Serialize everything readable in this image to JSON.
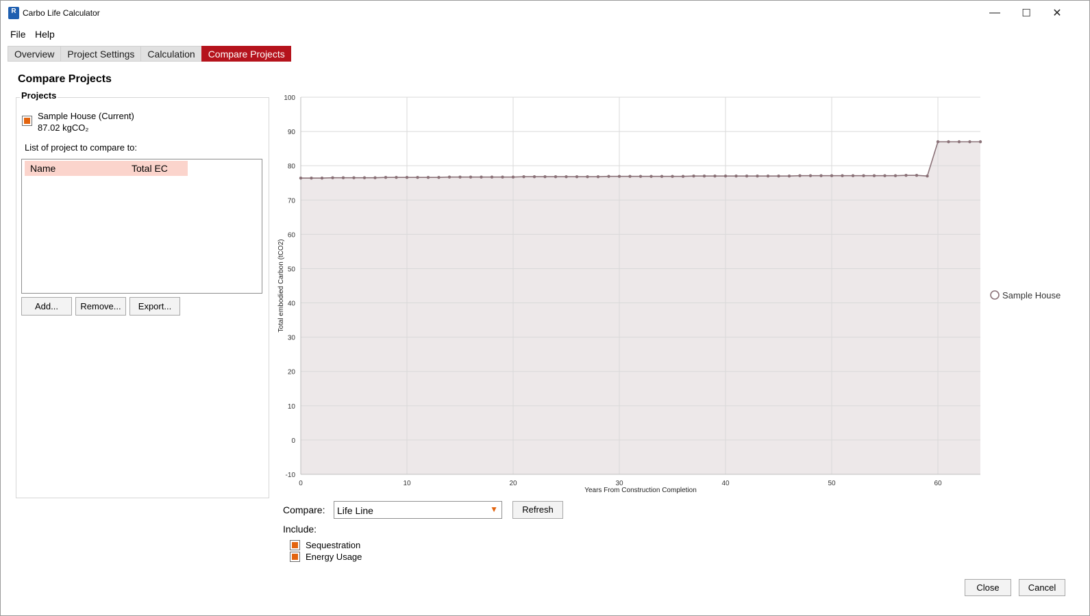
{
  "window": {
    "title": "Carbo Life Calculator",
    "icon_letter": "R",
    "icons": [
      "minimize-icon",
      "maximize-icon",
      "close-icon"
    ],
    "minimize_glyph": "—",
    "maximize_glyph": "☐",
    "close_glyph": "✕"
  },
  "menu": {
    "items": [
      "File",
      "Help"
    ]
  },
  "tabs": [
    {
      "label": "Overview",
      "active": false
    },
    {
      "label": "Project Settings",
      "active": false
    },
    {
      "label": "Calculation",
      "active": false
    },
    {
      "label": "Compare Projects",
      "active": true
    }
  ],
  "page": {
    "title": "Compare Projects"
  },
  "projects": {
    "group_label": "Projects",
    "current_name": "Sample House (Current)",
    "current_value": "87.02 kgCO₂",
    "list_caption": "List of project to compare to:",
    "columns": [
      "Name",
      "Total EC"
    ],
    "rows": [],
    "buttons": {
      "add": "Add...",
      "remove": "Remove...",
      "export": "Export..."
    }
  },
  "controls": {
    "compare_label": "Compare:",
    "compare_value": "Life Line",
    "refresh_label": "Refresh",
    "include_label": "Include:",
    "options": [
      {
        "label": "Sequestration",
        "checked": true
      },
      {
        "label": "Energy Usage",
        "checked": true
      }
    ]
  },
  "footer": {
    "close_label": "Close",
    "cancel_label": "Cancel"
  },
  "colors": {
    "accent": "#b5131c",
    "checkbox": "#e3640f",
    "series_line": "#8a7177",
    "series_fill": "#ede8e9"
  },
  "chart_data": {
    "type": "area",
    "title": "",
    "xlabel": "Years From Construction Completion",
    "ylabel": "Total embodied Carbon (tCO2)",
    "xlim": [
      0,
      64
    ],
    "ylim": [
      -10,
      100
    ],
    "xticks": [
      0,
      10,
      20,
      30,
      40,
      50,
      60
    ],
    "yticks": [
      -10,
      0,
      10,
      20,
      30,
      40,
      50,
      60,
      70,
      80,
      90,
      100
    ],
    "grid": true,
    "legend_position": "right",
    "series": [
      {
        "name": "Sample House",
        "x": [
          0,
          1,
          2,
          3,
          4,
          5,
          6,
          7,
          8,
          9,
          10,
          11,
          12,
          13,
          14,
          15,
          16,
          17,
          18,
          19,
          20,
          21,
          22,
          23,
          24,
          25,
          26,
          27,
          28,
          29,
          30,
          31,
          32,
          33,
          34,
          35,
          36,
          37,
          38,
          39,
          40,
          41,
          42,
          43,
          44,
          45,
          46,
          47,
          48,
          49,
          50,
          51,
          52,
          53,
          54,
          55,
          56,
          57,
          58,
          59,
          60,
          61,
          62,
          63,
          64
        ],
        "values": [
          76.4,
          76.4,
          76.4,
          76.5,
          76.5,
          76.5,
          76.5,
          76.5,
          76.6,
          76.6,
          76.6,
          76.6,
          76.6,
          76.6,
          76.7,
          76.7,
          76.7,
          76.7,
          76.7,
          76.7,
          76.7,
          76.8,
          76.8,
          76.8,
          76.8,
          76.8,
          76.8,
          76.8,
          76.8,
          76.9,
          76.9,
          76.9,
          76.9,
          76.9,
          76.9,
          76.9,
          76.9,
          77.0,
          77.0,
          77.0,
          77.0,
          77.0,
          77.0,
          77.0,
          77.0,
          77.0,
          77.0,
          77.1,
          77.1,
          77.1,
          77.1,
          77.1,
          77.1,
          77.1,
          77.1,
          77.1,
          77.1,
          77.2,
          77.2,
          77.0,
          87.0,
          87.0,
          87.0,
          87.0,
          87.0
        ]
      }
    ]
  }
}
